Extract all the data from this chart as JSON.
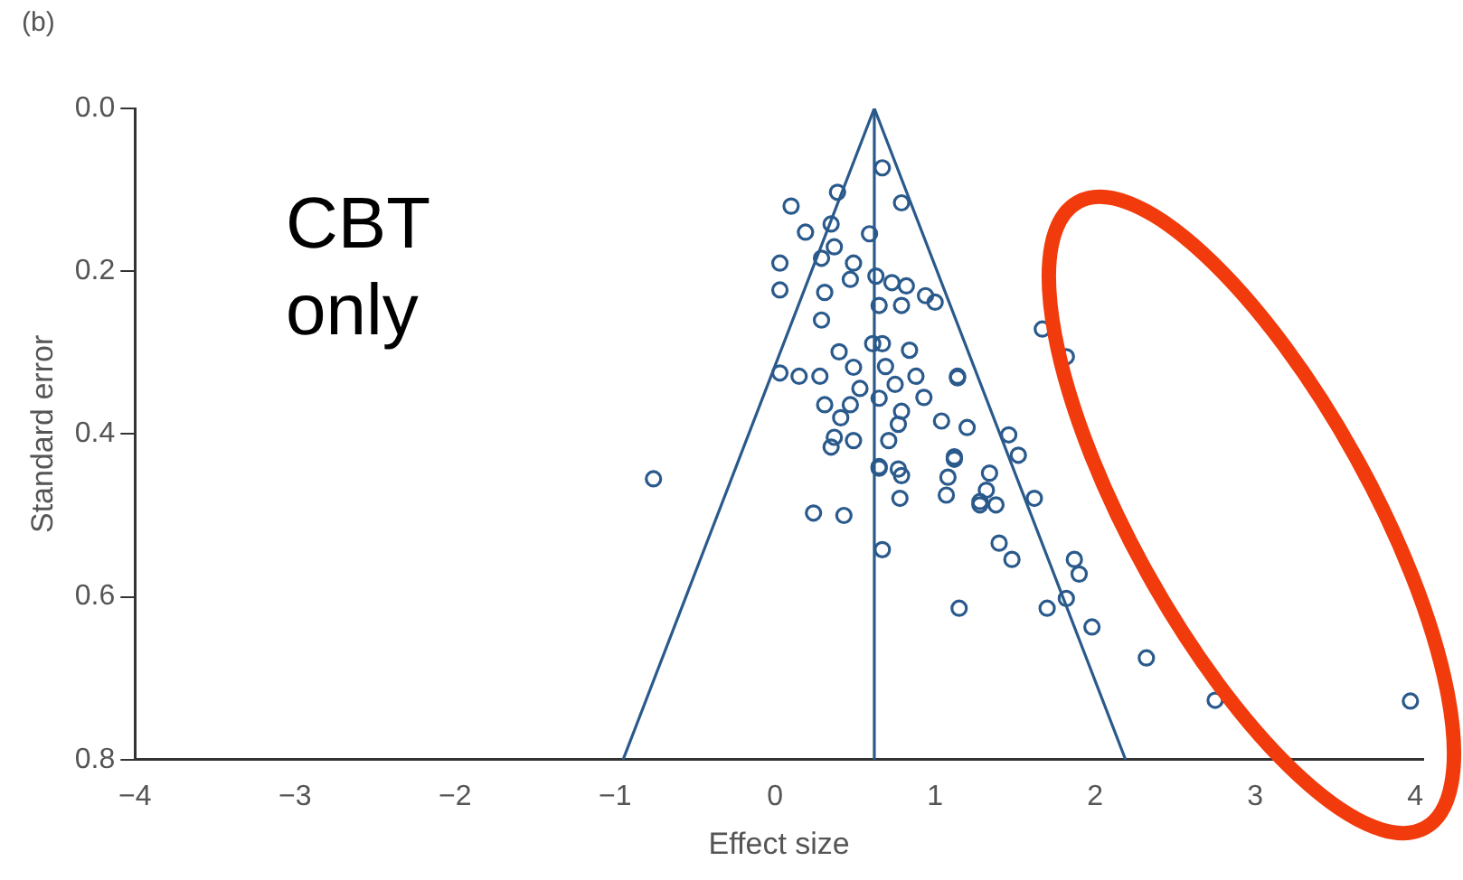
{
  "chart_data": {
    "type": "scatter",
    "xlabel": "Effect size",
    "ylabel": "Standard error",
    "annotations": [
      "(b)",
      "CBT only"
    ],
    "xlim": [
      -4,
      4.05
    ],
    "ylim": [
      0.8,
      0
    ],
    "xticks": [
      {
        "value": -4,
        "label": "−4"
      },
      {
        "value": -3,
        "label": "−3"
      },
      {
        "value": -2,
        "label": "−2"
      },
      {
        "value": -1,
        "label": "−1"
      },
      0,
      1,
      2,
      3,
      4
    ],
    "yticks": [
      {
        "value": 0,
        "label": "0.0"
      },
      {
        "value": 0.2,
        "label": "0.2"
      },
      {
        "value": 0.4,
        "label": "0.4"
      },
      {
        "value": 0.6,
        "label": "0.6"
      },
      {
        "value": 0.8,
        "label": "0.8"
      }
    ],
    "grid": false,
    "legend": false,
    "marker": "circle",
    "ref_lines": [
      {
        "axis": "x",
        "value": 0.62,
        "color": "#2a5a8c"
      }
    ],
    "series": [
      {
        "type": "line",
        "color": "#2a5a8c",
        "marker": "none",
        "x": [
          -0.95,
          0.62,
          2.19
        ],
        "values": [
          0.8,
          0,
          0.8
        ]
      },
      {
        "color": "#2a5a8c",
        "x": [
          0.67,
          0.79,
          0.39,
          0.1,
          0.19,
          0.35,
          0.59,
          0.03,
          0.03,
          0.29,
          0.37,
          0.49,
          0.47,
          0.63,
          0.73,
          0.82,
          0.94,
          1.0,
          0.31,
          0.65,
          0.79,
          0.29,
          0.61,
          0.67,
          0.84,
          0.4,
          0.03,
          0.15,
          0.28,
          0.49,
          0.69,
          0.88,
          1.14,
          0.53,
          0.75,
          0.93,
          0.31,
          0.47,
          0.65,
          0.41,
          0.79,
          0.77,
          1.04,
          1.2,
          0.37,
          0.49,
          0.35,
          0.71,
          1.12,
          0.65,
          0.77,
          -0.76,
          0.65,
          0.79,
          0.78,
          0.24,
          0.43,
          0.67,
          1.15,
          1.12,
          1.08,
          1.07,
          1.28,
          1.67,
          1.82,
          1.14,
          1.46,
          1.52,
          1.34,
          1.32,
          1.38,
          1.28,
          1.62,
          1.4,
          1.48,
          1.87,
          1.9,
          1.82,
          1.7,
          1.98,
          2.32,
          2.75,
          3.97
        ],
        "values": [
          0.073,
          0.116,
          0.103,
          0.12,
          0.152,
          0.142,
          0.154,
          0.19,
          0.223,
          0.184,
          0.17,
          0.19,
          0.21,
          0.206,
          0.214,
          0.218,
          0.23,
          0.238,
          0.226,
          0.242,
          0.242,
          0.26,
          0.289,
          0.289,
          0.297,
          0.299,
          0.325,
          0.329,
          0.329,
          0.318,
          0.317,
          0.329,
          0.329,
          0.344,
          0.339,
          0.355,
          0.364,
          0.364,
          0.356,
          0.38,
          0.372,
          0.388,
          0.384,
          0.392,
          0.404,
          0.408,
          0.416,
          0.408,
          0.428,
          0.44,
          0.443,
          0.455,
          0.442,
          0.451,
          0.479,
          0.497,
          0.5,
          0.542,
          0.614,
          0.431,
          0.453,
          0.475,
          0.483,
          0.271,
          0.305,
          0.331,
          0.401,
          0.426,
          0.448,
          0.469,
          0.487,
          0.487,
          0.479,
          0.534,
          0.554,
          0.554,
          0.572,
          0.602,
          0.614,
          0.637,
          0.675,
          0.727,
          0.728
        ]
      }
    ]
  }
}
